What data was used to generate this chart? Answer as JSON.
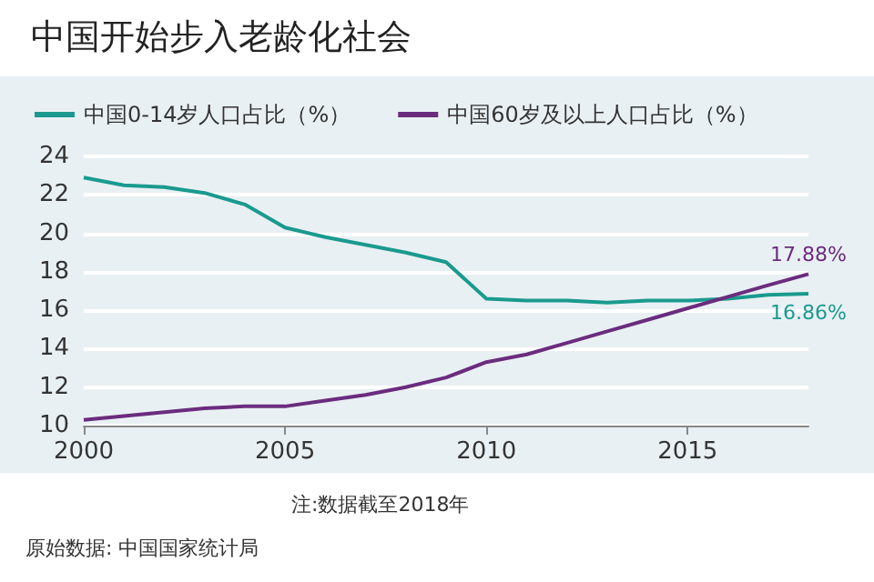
{
  "chart_data": {
    "type": "line",
    "title": "中国开始步入老龄化社会",
    "x": [
      2000,
      2001,
      2002,
      2003,
      2004,
      2005,
      2006,
      2007,
      2008,
      2009,
      2010,
      2011,
      2012,
      2013,
      2014,
      2015,
      2016,
      2017,
      2018
    ],
    "series": [
      {
        "name": "中国0-14岁人口占比（%）",
        "color": "#1a9a8e",
        "values": [
          22.9,
          22.5,
          22.4,
          22.1,
          21.5,
          20.3,
          19.8,
          19.4,
          19.0,
          18.5,
          16.6,
          16.5,
          16.5,
          16.4,
          16.5,
          16.5,
          16.6,
          16.8,
          16.86
        ],
        "value_labels": [
          null,
          null,
          null,
          null,
          null,
          null,
          null,
          null,
          null,
          null,
          null,
          null,
          null,
          null,
          null,
          null,
          null,
          null,
          "16.86%"
        ]
      },
      {
        "name": "中国60岁及以上人口占比（%）",
        "color": "#6b2c7e",
        "values": [
          10.3,
          10.5,
          10.7,
          10.9,
          11.0,
          11.0,
          11.3,
          11.6,
          12.0,
          12.5,
          13.3,
          13.7,
          14.3,
          14.9,
          15.5,
          16.1,
          16.7,
          17.3,
          17.88
        ],
        "value_labels": [
          null,
          null,
          null,
          null,
          null,
          null,
          null,
          null,
          null,
          null,
          null,
          null,
          null,
          null,
          null,
          null,
          null,
          null,
          "17.88%"
        ]
      }
    ],
    "xlim": [
      2000,
      2018
    ],
    "xticks": [
      2000,
      2005,
      2010,
      2015
    ],
    "ylim": [
      10,
      24
    ],
    "yticks": [
      10,
      12,
      14,
      16,
      18,
      20,
      22,
      24
    ],
    "grid": "y",
    "legend": "top left",
    "marker": "none",
    "line_style": "solid",
    "annotations": [
      "注:数据截至2018年",
      "原始数据: 中国国家统计局"
    ]
  }
}
